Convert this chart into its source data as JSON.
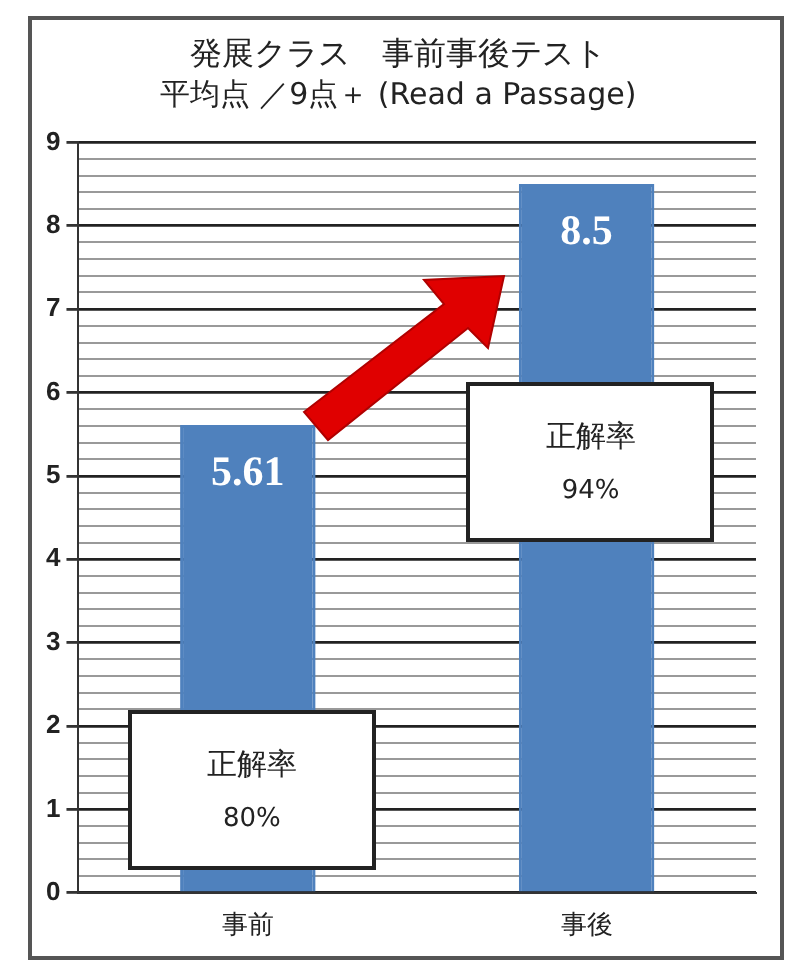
{
  "chart_data": {
    "type": "bar",
    "title": "発展クラス　事前事後テスト",
    "subtitle": "平均点 ／9点＋ (Read a Passage)",
    "categories": [
      "事前",
      "事後"
    ],
    "values": [
      5.61,
      8.5
    ],
    "color": "#4f81bd",
    "ylim": [
      0,
      9
    ],
    "yticks": [
      0,
      {
        "value": 0.2,
        "label": null
      },
      {
        "value": 0.4,
        "label": null
      },
      {
        "value": 0.6,
        "label": null
      },
      {
        "value": 0.8,
        "label": null
      },
      1,
      {
        "value": 1.2,
        "label": null
      },
      {
        "value": 1.4,
        "label": null
      },
      {
        "value": 1.6,
        "label": null
      },
      {
        "value": 1.8,
        "label": null
      },
      2,
      {
        "value": 2.2,
        "label": null
      },
      {
        "value": 2.4,
        "label": null
      },
      {
        "value": 2.6,
        "label": null
      },
      {
        "value": 2.8,
        "label": null
      },
      3,
      {
        "value": 3.2,
        "label": null
      },
      {
        "value": 3.4,
        "label": null
      },
      {
        "value": 3.6,
        "label": null
      },
      {
        "value": 3.8,
        "label": null
      },
      4,
      {
        "value": 4.2,
        "label": null
      },
      {
        "value": 4.4,
        "label": null
      },
      {
        "value": 4.6,
        "label": null
      },
      {
        "value": 4.8,
        "label": null
      },
      5,
      {
        "value": 5.2,
        "label": null
      },
      {
        "value": 5.4,
        "label": null
      },
      {
        "value": 5.6,
        "label": null
      },
      {
        "value": 5.8,
        "label": null
      },
      6,
      {
        "value": 6.2,
        "label": null
      },
      {
        "value": 6.4,
        "label": null
      },
      {
        "value": 6.6,
        "label": null
      },
      {
        "value": 6.8,
        "label": null
      },
      7,
      {
        "value": 7.2,
        "label": null
      },
      {
        "value": 7.4,
        "label": null
      },
      {
        "value": 7.6,
        "label": null
      },
      {
        "value": 7.8,
        "label": null
      },
      8,
      {
        "value": 8.2,
        "label": null
      },
      {
        "value": 8.4,
        "label": null
      },
      {
        "value": 8.6,
        "label": null
      },
      {
        "value": 8.8,
        "label": null
      },
      9
    ],
    "grid": "y",
    "legend": false,
    "data_labels": true,
    "annotations": [
      "正解率\n80%",
      "正解率\n94%"
    ]
  }
}
